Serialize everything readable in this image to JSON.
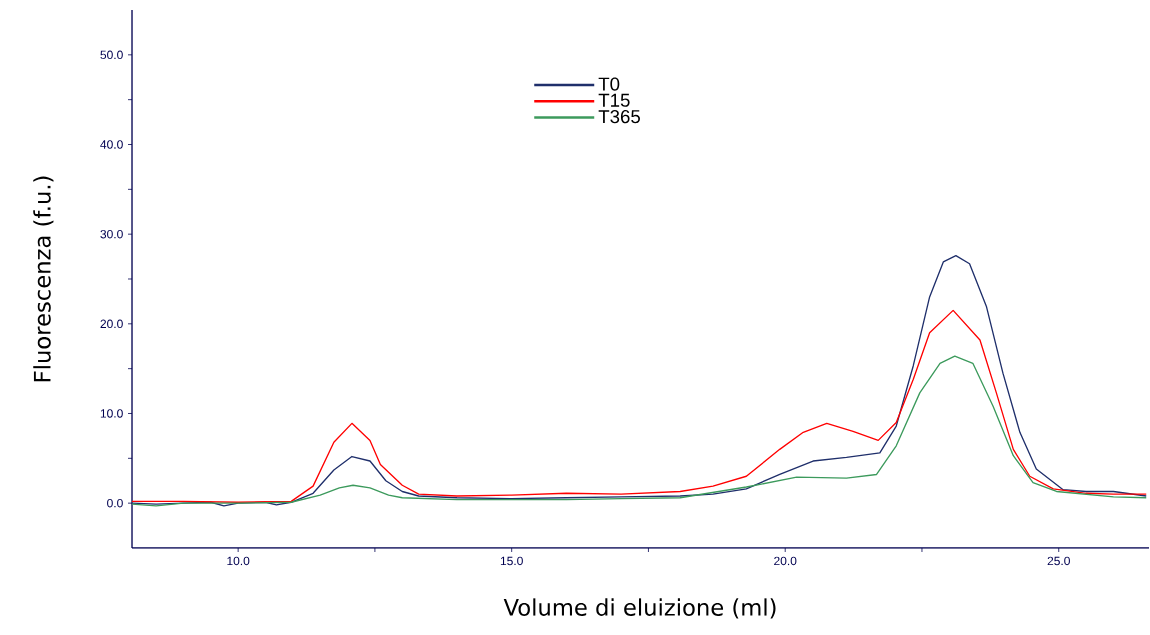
{
  "chart_data": {
    "type": "line",
    "xlabel": "Volume di eluizione (ml)",
    "ylabel": "Fluorescenza (f.u.)",
    "xlim": [
      8.06,
      26.65
    ],
    "ylim": [
      -5,
      55
    ],
    "xticks": [
      {
        "value": 10,
        "label": "10.0"
      },
      {
        "value": 12.5,
        "label": null
      },
      {
        "value": 15,
        "label": "15.0"
      },
      {
        "value": 17.5,
        "label": null
      },
      {
        "value": 20,
        "label": "20.0"
      },
      {
        "value": 22.5,
        "label": null
      },
      {
        "value": 25,
        "label": "25.0"
      }
    ],
    "yticks": [
      {
        "value": 0,
        "label": "0.0"
      },
      {
        "value": 5,
        "label": null
      },
      {
        "value": 10,
        "label": "10.0"
      },
      {
        "value": 15,
        "label": null
      },
      {
        "value": 20,
        "label": "20.0"
      },
      {
        "value": 25,
        "label": null
      },
      {
        "value": 30,
        "label": "30.0"
      },
      {
        "value": 35,
        "label": null
      },
      {
        "value": 40,
        "label": "40.0"
      },
      {
        "value": 45,
        "label": null
      },
      {
        "value": 50,
        "label": "50.0"
      }
    ],
    "legend": "top",
    "marker": "none",
    "line_style": "solid",
    "series": [
      {
        "name": "T0",
        "color": "#1f2f6b",
        "x": [
          8.06,
          8.5,
          9.0,
          9.5,
          9.74,
          10.0,
          10.5,
          10.7,
          10.97,
          11.37,
          11.75,
          12.08,
          12.41,
          12.7,
          13.0,
          13.3,
          14.0,
          15.0,
          16.0,
          17.0,
          18.08,
          18.68,
          19.29,
          19.9,
          20.51,
          21.12,
          21.73,
          22.03,
          22.34,
          22.64,
          22.89,
          23.12,
          23.37,
          23.68,
          23.98,
          24.29,
          24.59,
          25.08,
          25.5,
          26.0,
          26.6
        ],
        "values": [
          0.0,
          -0.1,
          0.0,
          0.1,
          -0.3,
          0.0,
          0.1,
          -0.2,
          0.1,
          1.1,
          3.7,
          5.2,
          4.7,
          2.5,
          1.3,
          0.8,
          0.6,
          0.5,
          0.6,
          0.7,
          0.8,
          1.0,
          1.6,
          3.2,
          4.7,
          5.1,
          5.6,
          8.6,
          15.3,
          23.0,
          26.9,
          27.6,
          26.7,
          21.9,
          14.5,
          7.9,
          3.8,
          1.5,
          1.3,
          1.3,
          0.8
        ]
      },
      {
        "name": "T15",
        "color": "#ff0000",
        "x": [
          8.06,
          9.0,
          10.0,
          10.97,
          11.37,
          11.75,
          12.08,
          12.41,
          12.6,
          13.0,
          13.3,
          14.0,
          15.0,
          16.0,
          17.0,
          18.08,
          18.68,
          19.29,
          19.9,
          20.33,
          20.76,
          21.24,
          21.7,
          22.03,
          22.34,
          22.64,
          23.07,
          23.56,
          23.86,
          24.17,
          24.47,
          24.9,
          25.5,
          26.0,
          26.6
        ],
        "values": [
          0.2,
          0.2,
          0.1,
          0.2,
          1.9,
          6.8,
          8.9,
          7.0,
          4.3,
          2.0,
          1.0,
          0.8,
          0.9,
          1.1,
          1.0,
          1.3,
          1.9,
          3.0,
          6.0,
          7.9,
          8.9,
          8.0,
          7.0,
          9.0,
          13.8,
          19.0,
          21.5,
          18.2,
          12.3,
          6.0,
          3.0,
          1.6,
          1.1,
          1.0,
          1.0
        ]
      },
      {
        "name": "T365",
        "color": "#3c9a5c",
        "x": [
          8.06,
          8.5,
          9.0,
          10.0,
          10.97,
          11.5,
          11.85,
          12.1,
          12.41,
          12.75,
          13.0,
          14.0,
          15.0,
          16.0,
          17.0,
          18.08,
          19.29,
          20.21,
          21.12,
          21.67,
          22.03,
          22.46,
          22.83,
          23.1,
          23.43,
          23.8,
          24.17,
          24.53,
          24.96,
          26.0,
          26.6
        ],
        "values": [
          -0.1,
          -0.3,
          0.0,
          0.0,
          0.1,
          0.9,
          1.7,
          2.0,
          1.7,
          0.9,
          0.6,
          0.4,
          0.4,
          0.4,
          0.5,
          0.6,
          1.8,
          2.9,
          2.8,
          3.2,
          6.4,
          12.3,
          15.6,
          16.4,
          15.6,
          10.8,
          5.3,
          2.3,
          1.3,
          0.7,
          0.6
        ]
      }
    ]
  }
}
